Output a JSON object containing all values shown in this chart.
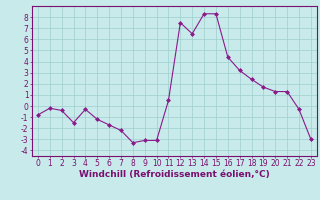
{
  "x": [
    0,
    1,
    2,
    3,
    4,
    5,
    6,
    7,
    8,
    9,
    10,
    11,
    12,
    13,
    14,
    15,
    16,
    17,
    18,
    19,
    20,
    21,
    22,
    23
  ],
  "y": [
    -0.8,
    -0.2,
    -0.4,
    -1.5,
    -0.3,
    -1.2,
    -1.7,
    -2.2,
    -3.3,
    -3.1,
    -3.1,
    0.5,
    7.5,
    6.5,
    8.3,
    8.3,
    4.4,
    3.2,
    2.4,
    1.7,
    1.3,
    1.3,
    -0.3,
    -3.0
  ],
  "line_color": "#8b1a8b",
  "marker": "D",
  "marker_size": 2.0,
  "bg_color": "#c8eaea",
  "grid_color": "#9ecece",
  "xlabel": "Windchill (Refroidissement éolien,°C)",
  "xlabel_fontsize": 6.5,
  "ylim": [
    -4.5,
    9.0
  ],
  "xlim": [
    -0.5,
    23.5
  ],
  "xticks": [
    0,
    1,
    2,
    3,
    4,
    5,
    6,
    7,
    8,
    9,
    10,
    11,
    12,
    13,
    14,
    15,
    16,
    17,
    18,
    19,
    20,
    21,
    22,
    23
  ],
  "yticks": [
    -4,
    -3,
    -2,
    -1,
    0,
    1,
    2,
    3,
    4,
    5,
    6,
    7,
    8
  ],
  "tick_fontsize": 5.5,
  "axis_color": "#7a1070"
}
